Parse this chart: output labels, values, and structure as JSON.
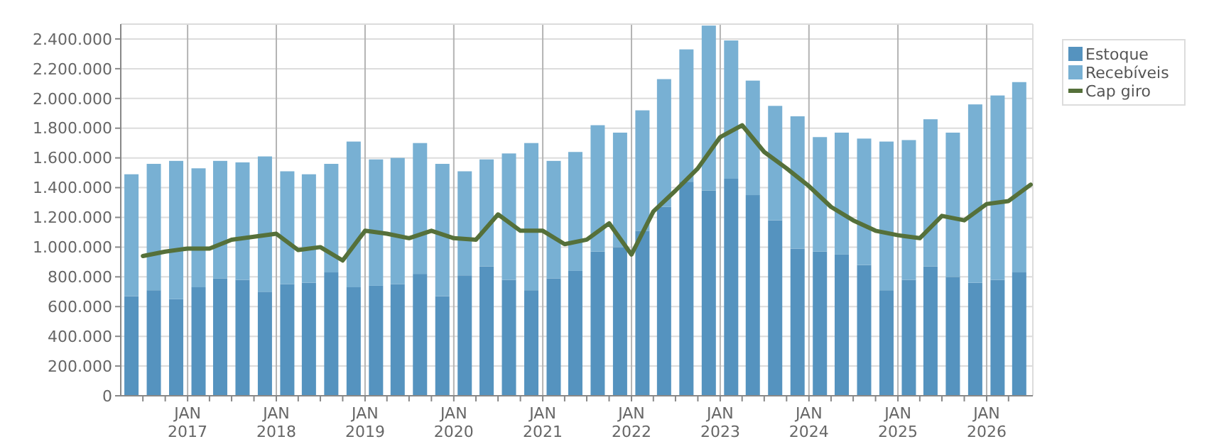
{
  "chart_data": {
    "type": "bar",
    "stacked": true,
    "x": [
      "2016-05-15",
      "2016-08-15",
      "2016-11-15",
      "2017-02-15",
      "2017-05-15",
      "2017-08-15",
      "2017-11-15",
      "2018-02-15",
      "2018-05-15",
      "2018-08-15",
      "2018-11-15",
      "2019-02-15",
      "2019-05-15",
      "2019-08-15",
      "2019-11-15",
      "2020-02-15",
      "2020-05-15",
      "2020-08-15",
      "2020-11-15",
      "2021-02-15",
      "2021-05-15",
      "2021-08-15",
      "2021-11-15",
      "2022-02-15",
      "2022-05-15",
      "2022-08-15",
      "2022-11-15",
      "2023-02-15",
      "2023-05-15",
      "2023-08-15",
      "2023-11-15",
      "2024-02-15",
      "2024-05-15",
      "2024-08-15",
      "2024-11-15",
      "2025-02-15",
      "2025-05-15",
      "2025-08-15",
      "2025-11-15",
      "2026-02-15",
      "2026-05-15"
    ],
    "series": [
      {
        "name": "Estoque",
        "color": "#5593bf",
        "values": [
          670000,
          710000,
          650000,
          730000,
          790000,
          780000,
          700000,
          750000,
          760000,
          830000,
          730000,
          740000,
          750000,
          820000,
          670000,
          810000,
          870000,
          780000,
          710000,
          790000,
          840000,
          970000,
          1000000,
          1110000,
          1270000,
          1440000,
          1380000,
          1460000,
          1350000,
          1180000,
          990000,
          970000,
          950000,
          880000,
          710000,
          780000,
          870000,
          800000,
          760000,
          780000,
          830000
        ]
      },
      {
        "name": "Recebíveis",
        "color": "#78b0d3",
        "values": [
          820000,
          850000,
          930000,
          800000,
          790000,
          790000,
          910000,
          760000,
          730000,
          730000,
          980000,
          850000,
          850000,
          880000,
          890000,
          700000,
          720000,
          850000,
          990000,
          790000,
          800000,
          850000,
          770000,
          810000,
          860000,
          890000,
          1110000,
          930000,
          770000,
          770000,
          890000,
          770000,
          820000,
          850000,
          1000000,
          940000,
          990000,
          970000,
          1200000,
          1240000,
          1280000
        ]
      },
      {
        "name": "Cap giro",
        "type": "line",
        "color": "#55703a",
        "x": [
          "2016-07-01",
          "2016-10-01",
          "2017-01-01",
          "2017-04-01",
          "2017-07-01",
          "2017-10-01",
          "2018-01-01",
          "2018-04-01",
          "2018-07-01",
          "2018-10-01",
          "2019-01-01",
          "2019-04-01",
          "2019-07-01",
          "2019-10-01",
          "2020-01-01",
          "2020-04-01",
          "2020-07-01",
          "2020-10-01",
          "2021-01-01",
          "2021-04-01",
          "2021-07-01",
          "2021-10-01",
          "2022-01-01",
          "2022-04-01",
          "2022-07-01",
          "2022-10-01",
          "2023-01-01",
          "2023-04-01",
          "2023-07-01",
          "2023-10-01",
          "2024-01-01",
          "2024-04-01",
          "2024-07-01",
          "2024-10-01",
          "2025-01-01",
          "2025-04-01",
          "2025-07-01",
          "2025-10-01",
          "2026-01-01",
          "2026-04-01",
          "2026-07-01"
        ],
        "values": [
          940000,
          970000,
          990000,
          990000,
          1050000,
          1070000,
          1090000,
          980000,
          1000000,
          910000,
          1110000,
          1090000,
          1060000,
          1110000,
          1060000,
          1050000,
          1220000,
          1110000,
          1110000,
          1020000,
          1050000,
          1160000,
          950000,
          1240000,
          1380000,
          1530000,
          1740000,
          1820000,
          1640000,
          1530000,
          1410000,
          1270000,
          1180000,
          1110000,
          1080000,
          1060000,
          1210000,
          1180000,
          1290000,
          1310000,
          1420000
        ]
      }
    ],
    "xlim": [
      "2016-04-01",
      "2026-07-10"
    ],
    "xticks": [
      {
        "value": "2016-07-01",
        "label": null
      },
      {
        "value": "2016-10-01",
        "label": null
      },
      {
        "value": "2017-01-01",
        "label": "JAN\n2017"
      },
      {
        "value": "2017-04-01",
        "label": null
      },
      {
        "value": "2017-07-01",
        "label": null
      },
      {
        "value": "2017-10-01",
        "label": null
      },
      {
        "value": "2018-01-01",
        "label": "JAN\n2018"
      },
      {
        "value": "2018-04-01",
        "label": null
      },
      {
        "value": "2018-07-01",
        "label": null
      },
      {
        "value": "2018-10-01",
        "label": null
      },
      {
        "value": "2019-01-01",
        "label": "JAN\n2019"
      },
      {
        "value": "2019-04-01",
        "label": null
      },
      {
        "value": "2019-07-01",
        "label": null
      },
      {
        "value": "2019-10-01",
        "label": null
      },
      {
        "value": "2020-01-01",
        "label": "JAN\n2020"
      },
      {
        "value": "2020-04-01",
        "label": null
      },
      {
        "value": "2020-07-01",
        "label": null
      },
      {
        "value": "2020-10-01",
        "label": null
      },
      {
        "value": "2021-01-01",
        "label": "JAN\n2021"
      },
      {
        "value": "2021-04-01",
        "label": null
      },
      {
        "value": "2021-07-01",
        "label": null
      },
      {
        "value": "2021-10-01",
        "label": null
      },
      {
        "value": "2022-01-01",
        "label": "JAN\n2022"
      },
      {
        "value": "2022-04-01",
        "label": null
      },
      {
        "value": "2022-07-01",
        "label": null
      },
      {
        "value": "2022-10-01",
        "label": null
      },
      {
        "value": "2023-01-01",
        "label": "JAN\n2023"
      },
      {
        "value": "2023-04-01",
        "label": null
      },
      {
        "value": "2023-07-01",
        "label": null
      },
      {
        "value": "2023-10-01",
        "label": null
      },
      {
        "value": "2024-01-01",
        "label": "JAN\n2024"
      },
      {
        "value": "2024-04-01",
        "label": null
      },
      {
        "value": "2024-07-01",
        "label": null
      },
      {
        "value": "2024-10-01",
        "label": null
      },
      {
        "value": "2025-01-01",
        "label": "JAN\n2025"
      },
      {
        "value": "2025-04-01",
        "label": null
      },
      {
        "value": "2025-07-01",
        "label": null
      },
      {
        "value": "2025-10-01",
        "label": null
      },
      {
        "value": "2026-01-01",
        "label": "JAN\n2026"
      },
      {
        "value": "2026-04-01",
        "label": null
      }
    ],
    "ylim": [
      0,
      2500000
    ],
    "yticks": [
      {
        "value": 0,
        "label": "0"
      },
      {
        "value": 200000,
        "label": "200.000"
      },
      {
        "value": 400000,
        "label": "400.000"
      },
      {
        "value": 600000,
        "label": "600.000"
      },
      {
        "value": 800000,
        "label": "800.000"
      },
      {
        "value": 1000000,
        "label": "1.000.000"
      },
      {
        "value": 1200000,
        "label": "1.200.000"
      },
      {
        "value": 1400000,
        "label": "1.400.000"
      },
      {
        "value": 1600000,
        "label": "1.600.000"
      },
      {
        "value": 1800000,
        "label": "1.800.000"
      },
      {
        "value": 2000000,
        "label": "2.000.000"
      },
      {
        "value": 2200000,
        "label": "2.200.000"
      },
      {
        "value": 2400000,
        "label": "2.400.000"
      }
    ],
    "grid": true,
    "legend": "right",
    "marker": "none",
    "line_style": "solid"
  }
}
